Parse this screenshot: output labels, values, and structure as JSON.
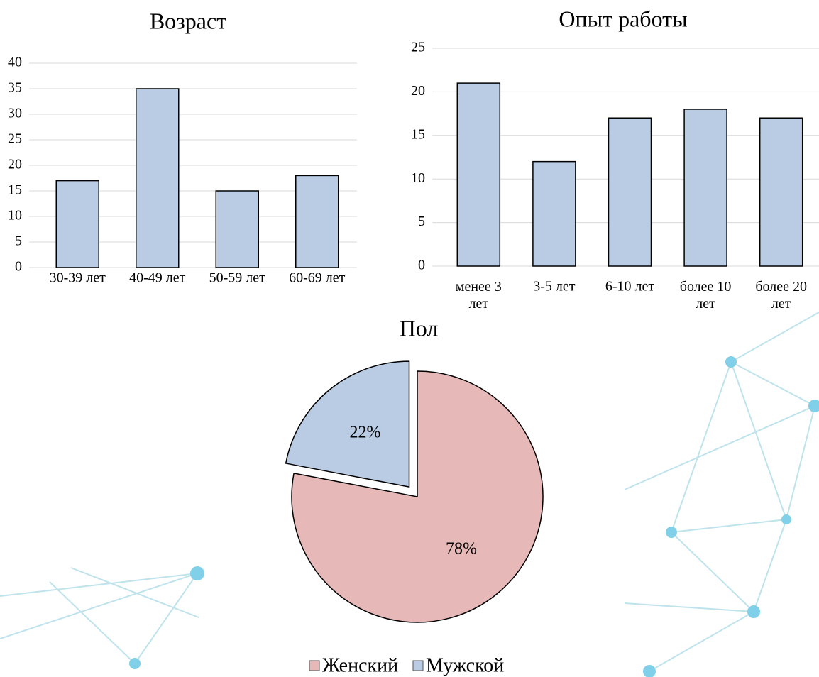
{
  "chart_data": [
    {
      "type": "bar",
      "title": "Возраст",
      "categories": [
        "30-39 лет",
        "40-49 лет",
        "50-59 лет",
        "60-69 лет"
      ],
      "values": [
        17,
        35,
        15,
        18
      ],
      "color": "#b9cce4",
      "ylim": [
        0,
        40
      ],
      "yticks": [
        0,
        5,
        10,
        15,
        20,
        25,
        30,
        35,
        40
      ],
      "grid": true
    },
    {
      "type": "bar",
      "title": "Опыт работы",
      "categories": [
        "менее 3 лет",
        "3-5 лет",
        "6-10 лет",
        "более 10 лет",
        "более 20 лет"
      ],
      "values": [
        21,
        12,
        17,
        18,
        17
      ],
      "color": "#b9cce4",
      "ylim": [
        0,
        25
      ],
      "yticks": [
        0,
        5,
        10,
        15,
        20,
        25
      ],
      "grid": true
    },
    {
      "type": "pie",
      "title": "Пол",
      "categories": [
        "Женский",
        "Мужской"
      ],
      "values": [
        78,
        22
      ],
      "value_labels": [
        "78%",
        "22%"
      ],
      "colors": [
        "#e6b8b7",
        "#b9cce4"
      ],
      "legend": "bottom"
    }
  ]
}
